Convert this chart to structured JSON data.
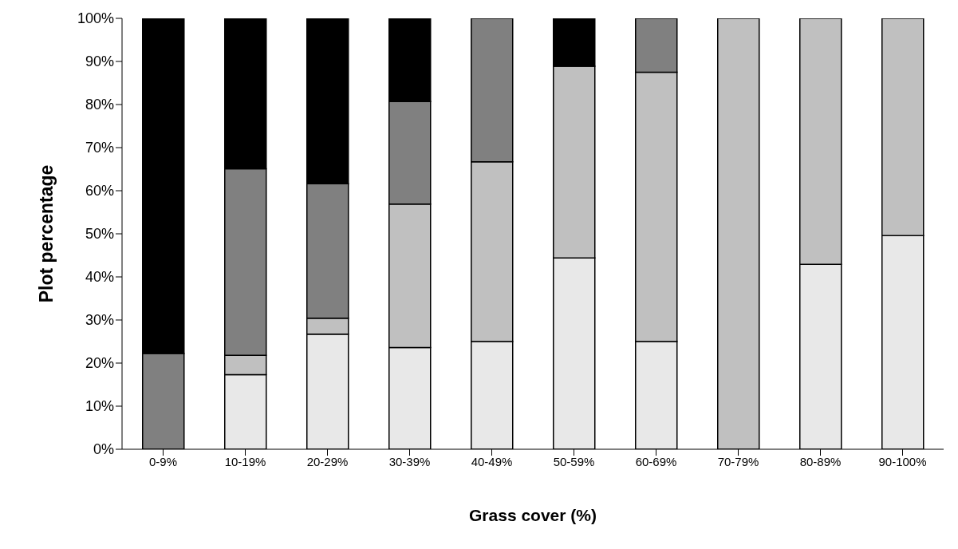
{
  "chart_data": {
    "type": "bar",
    "stacked": true,
    "xlabel": "Grass cover (%)",
    "ylabel": "Plot percentage",
    "categories": [
      "0-9%",
      "10-19%",
      "20-29%",
      "30-39%",
      "40-49%",
      "50-59%",
      "60-69%",
      "70-79%",
      "80-89%",
      "90-100%"
    ],
    "series": [
      {
        "color": "#e8e8e8",
        "values": [
          0,
          17.3,
          26.7,
          23.6,
          25,
          44.4,
          25,
          0,
          42.9,
          49.6
        ]
      },
      {
        "color": "#c0c0c0",
        "values": [
          0,
          4.5,
          3.7,
          33.3,
          41.7,
          44.5,
          62.5,
          100,
          57.1,
          50.4
        ]
      },
      {
        "color": "#808080",
        "values": [
          22.2,
          43.3,
          31.2,
          23.8,
          33.3,
          0,
          12.5,
          0,
          0,
          0
        ]
      },
      {
        "color": "#000000",
        "values": [
          77.8,
          34.9,
          38.4,
          19.3,
          0,
          11.1,
          0,
          0,
          0,
          0
        ]
      }
    ],
    "ylim": [
      0,
      100
    ],
    "yticks": [
      {
        "value": 0,
        "label": "0%"
      },
      {
        "value": 10,
        "label": "10%"
      },
      {
        "value": 20,
        "label": "20%"
      },
      {
        "value": 30,
        "label": "30%"
      },
      {
        "value": 40,
        "label": "40%"
      },
      {
        "value": 50,
        "label": "50%"
      },
      {
        "value": 60,
        "label": "60%"
      },
      {
        "value": 70,
        "label": "70%"
      },
      {
        "value": 80,
        "label": "80%"
      },
      {
        "value": 90,
        "label": "90%"
      },
      {
        "value": 100,
        "label": "100%"
      }
    ],
    "grid": false,
    "legend": false
  }
}
